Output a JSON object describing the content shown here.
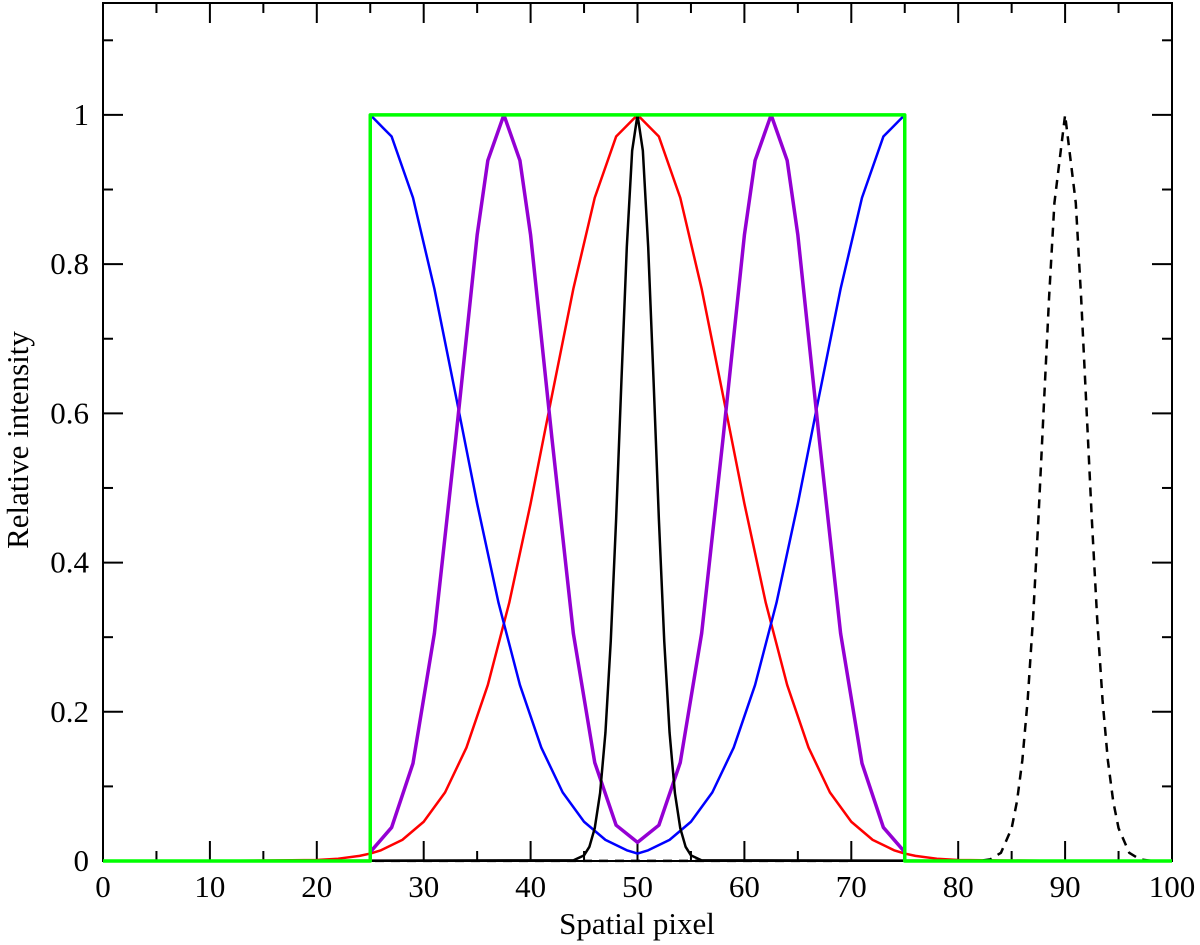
{
  "chart_data": {
    "type": "line",
    "xlabel": "Spatial pixel",
    "ylabel": "Relative intensity",
    "xlim": [
      0,
      100
    ],
    "xticks": [
      0,
      10,
      20,
      30,
      40,
      50,
      60,
      70,
      80,
      90,
      100
    ],
    "xminorticks": [
      5,
      15,
      25,
      35,
      45,
      55,
      65,
      75,
      85,
      95
    ],
    "ylim": [
      0,
      1.15
    ],
    "yticks": [
      0,
      0.2,
      0.4,
      0.6,
      0.8,
      1
    ],
    "yminorticks": [
      0.1,
      0.3,
      0.5,
      0.7,
      0.9,
      1.1
    ],
    "series": [
      {
        "color": "#ff0000",
        "width": 2.5,
        "x": [
          0,
          10,
          20,
          22,
          24,
          25,
          26,
          28,
          30,
          32,
          34,
          36,
          38,
          40,
          42,
          44,
          46,
          48,
          50,
          52,
          54,
          56,
          58,
          60,
          62,
          64,
          66,
          68,
          70,
          72,
          74,
          75,
          76,
          78,
          80,
          90,
          100
        ],
        "values": [
          0,
          0,
          0.0013,
          0.0031,
          0.0069,
          0.01,
          0.0144,
          0.0283,
          0.0526,
          0.092,
          0.152,
          0.236,
          0.346,
          0.479,
          0.624,
          0.767,
          0.889,
          0.971,
          1,
          0.971,
          0.889,
          0.767,
          0.624,
          0.479,
          0.346,
          0.236,
          0.152,
          0.092,
          0.0526,
          0.0283,
          0.0144,
          0.01,
          0.0069,
          0.0031,
          0.0013,
          0,
          0
        ]
      },
      {
        "color": "#0000ff",
        "width": 2.5,
        "x": [
          25,
          27,
          29,
          31,
          33,
          35,
          37,
          39,
          41,
          43,
          45,
          47,
          49,
          50,
          51,
          53,
          55,
          57,
          59,
          61,
          63,
          65,
          67,
          69,
          71,
          73,
          75
        ],
        "values": [
          1,
          0.971,
          0.889,
          0.767,
          0.624,
          0.479,
          0.346,
          0.236,
          0.152,
          0.092,
          0.0526,
          0.0283,
          0.0144,
          0.01,
          0.0144,
          0.0283,
          0.0526,
          0.092,
          0.152,
          0.236,
          0.346,
          0.479,
          0.624,
          0.767,
          0.889,
          0.971,
          1
        ]
      },
      {
        "color": "#9400d3",
        "width": 3.5,
        "x": [
          25,
          27,
          29,
          31,
          33,
          35,
          36,
          37.5,
          39,
          40,
          42,
          44,
          46,
          48,
          50,
          52,
          54,
          56,
          58,
          60,
          61,
          62.5,
          64,
          65,
          67,
          69,
          71,
          73,
          75
        ],
        "values": [
          0.012,
          0.045,
          0.131,
          0.305,
          0.566,
          0.839,
          0.939,
          1,
          0.939,
          0.839,
          0.566,
          0.305,
          0.132,
          0.048,
          0.025,
          0.048,
          0.132,
          0.305,
          0.566,
          0.839,
          0.939,
          1,
          0.939,
          0.839,
          0.566,
          0.305,
          0.131,
          0.045,
          0.012
        ]
      },
      {
        "color": "#000000",
        "width": 2.5,
        "x": [
          0,
          44,
          45,
          45.5,
          46,
          46.5,
          47,
          47.5,
          48,
          48.5,
          49,
          49.5,
          50,
          50.5,
          51,
          51.5,
          52,
          52.5,
          53,
          53.5,
          54,
          54.5,
          55,
          56,
          100
        ],
        "values": [
          0,
          0.0009,
          0.0076,
          0.019,
          0.044,
          0.091,
          0.172,
          0.295,
          0.458,
          0.645,
          0.823,
          0.952,
          1,
          0.952,
          0.823,
          0.645,
          0.458,
          0.295,
          0.172,
          0.091,
          0.044,
          0.019,
          0.0076,
          0.0009,
          0
        ]
      },
      {
        "color": "#000000",
        "width": 2.5,
        "dash": "9,7",
        "x": [
          0,
          82,
          83,
          84,
          85,
          85.5,
          86,
          86.5,
          87,
          87.5,
          88,
          88.5,
          89,
          90,
          91,
          91.5,
          92,
          92.5,
          93,
          93.5,
          94,
          94.5,
          95,
          96,
          97,
          98,
          100
        ],
        "values": [
          0,
          0.0003,
          0.0022,
          0.011,
          0.044,
          0.08,
          0.135,
          0.216,
          0.325,
          0.458,
          0.607,
          0.755,
          0.882,
          1,
          0.882,
          0.755,
          0.607,
          0.458,
          0.325,
          0.216,
          0.135,
          0.08,
          0.044,
          0.011,
          0.0022,
          0.0003,
          0
        ]
      },
      {
        "color": "#00ff00",
        "width": 3.5,
        "x": [
          0,
          25,
          25,
          75,
          75,
          100
        ],
        "values": [
          0,
          0,
          1,
          1,
          0,
          0
        ]
      }
    ]
  }
}
